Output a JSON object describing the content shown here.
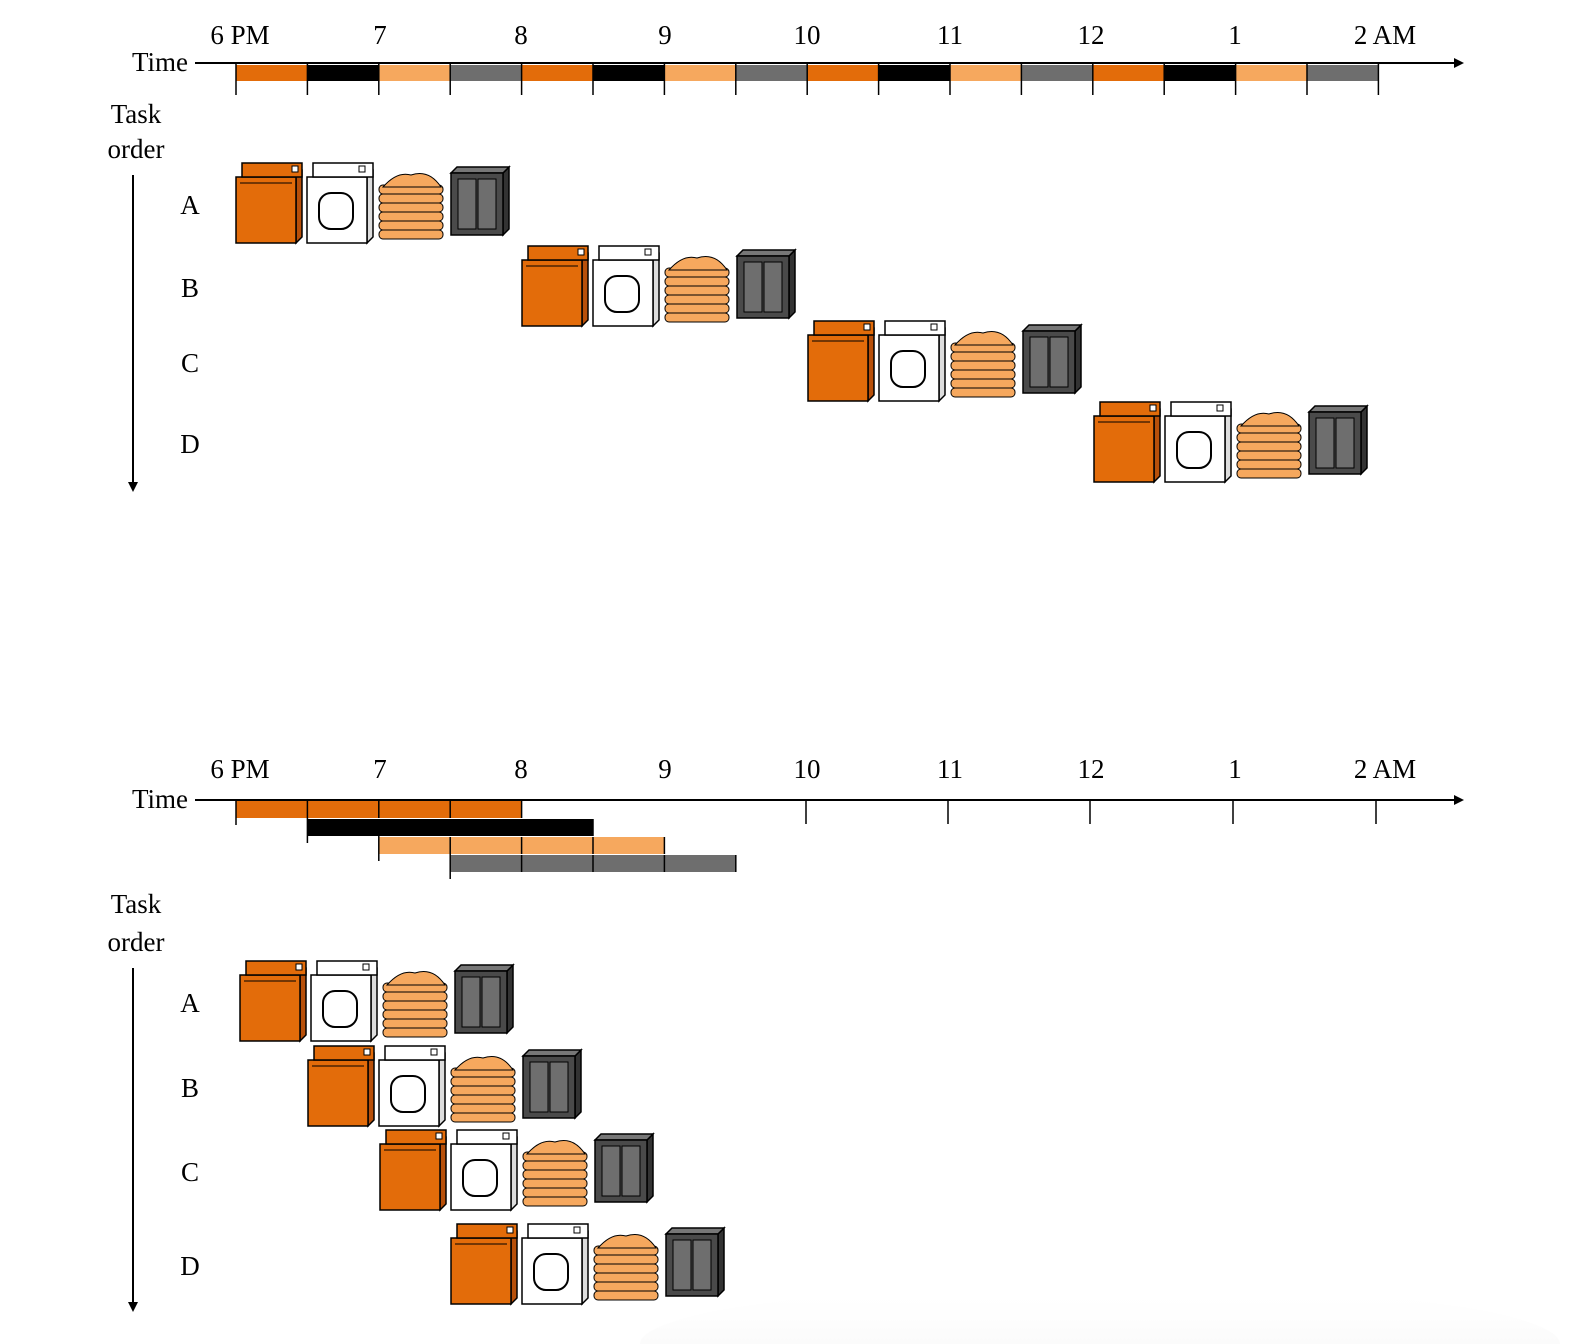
{
  "diagrams": [
    {
      "time_label": "Time",
      "time_ticks": [
        "6 PM",
        "7",
        "8",
        "9",
        "10",
        "11",
        "12",
        "1",
        "2 AM"
      ],
      "task_order": [
        "Task",
        "order"
      ],
      "tasks": [
        "A",
        "B",
        "C",
        "D"
      ]
    },
    {
      "time_label": "Time",
      "time_ticks": [
        "6 PM",
        "7",
        "8",
        "9",
        "10",
        "11",
        "12",
        "1",
        "2 AM"
      ],
      "task_order": [
        "Task",
        "order"
      ],
      "tasks": [
        "A",
        "B",
        "C",
        "D"
      ]
    }
  ]
}
